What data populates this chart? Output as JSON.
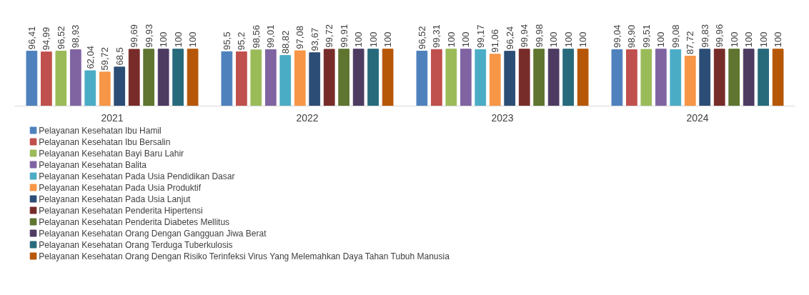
{
  "chart_data": {
    "type": "bar",
    "categories": [
      "2021",
      "2022",
      "2023",
      "2024"
    ],
    "legend": "bottom",
    "series": [
      {
        "name": "Pelayanan Kesehatan Ibu Hamil",
        "color": "#4f81bd",
        "values": [
          96.41,
          95.5,
          96.52,
          99.04
        ],
        "value_labels": [
          "96,41",
          "95,5",
          "96,52",
          "99,04"
        ]
      },
      {
        "name": "Pelayanan Kesehatan Ibu Bersalin",
        "color": "#c0504d",
        "values": [
          94.99,
          95.2,
          99.31,
          98.9
        ],
        "value_labels": [
          "94,99",
          "95,2",
          "99,31",
          "98,90"
        ]
      },
      {
        "name": "Pelayanan Kesehatan Bayi Baru Lahir",
        "color": "#9bbb59",
        "values": [
          96.52,
          98.56,
          100,
          99.51
        ],
        "value_labels": [
          "96,52",
          "98,56",
          "100",
          "99,51"
        ]
      },
      {
        "name": "Pelayanan Kesehatan Balita",
        "color": "#8064a2",
        "values": [
          98.93,
          99.01,
          100,
          100
        ],
        "value_labels": [
          "98,93",
          "99,01",
          "100",
          "100"
        ]
      },
      {
        "name": "Pelayanan Kesehatan Pada Usia Pendidikan Dasar",
        "color": "#4bacc6",
        "values": [
          62.04,
          88.82,
          99.17,
          99.08
        ],
        "value_labels": [
          "62,04",
          "88,82",
          "99,17",
          "99,08"
        ]
      },
      {
        "name": "Pelayanan Kesehatan Pada Usia Produktif",
        "color": "#f79646",
        "values": [
          59.72,
          97.08,
          91.06,
          87.72
        ],
        "value_labels": [
          "59,72",
          "97,08",
          "91,06",
          "87,72"
        ]
      },
      {
        "name": "Pelayanan Kesehatan Pada Usia Lanjut",
        "color": "#2c4d75",
        "values": [
          68.5,
          93.67,
          96.24,
          99.83
        ],
        "value_labels": [
          "68,5",
          "93,67",
          "96,24",
          "99,83"
        ]
      },
      {
        "name": "Pelayanan Kesehatan Penderita Hipertensi",
        "color": "#772c2a",
        "values": [
          99.69,
          99.72,
          99.94,
          99.96
        ],
        "value_labels": [
          "99,69",
          "99,72",
          "99,94",
          "99,96"
        ]
      },
      {
        "name": "Pelayanan Kesehatan Penderita Diabetes Mellitus",
        "color": "#5f7530",
        "values": [
          99.93,
          99.91,
          99.98,
          100
        ],
        "value_labels": [
          "99,93",
          "99,91",
          "99,98",
          "100"
        ]
      },
      {
        "name": "Pelayanan Kesehatan Orang Dengan Gangguan Jiwa Berat",
        "color": "#4d3b62",
        "values": [
          100,
          100,
          100,
          100
        ],
        "value_labels": [
          "100",
          "100",
          "100",
          "100"
        ]
      },
      {
        "name": "Pelayanan Kesehatan Orang Terduga Tuberkulosis",
        "color": "#276a7c",
        "values": [
          100,
          100,
          100,
          100
        ],
        "value_labels": [
          "100",
          "100",
          "100",
          "100"
        ]
      },
      {
        "name": "Pelayanan Kesehatan Orang Dengan Risiko Terinfeksi Virus Yang Melemahkan Daya Tahan Tubuh Manusia",
        "color": "#b65708",
        "values": [
          100,
          100,
          100,
          100
        ],
        "value_labels": [
          "100",
          "100",
          "100",
          "100"
        ]
      }
    ]
  }
}
